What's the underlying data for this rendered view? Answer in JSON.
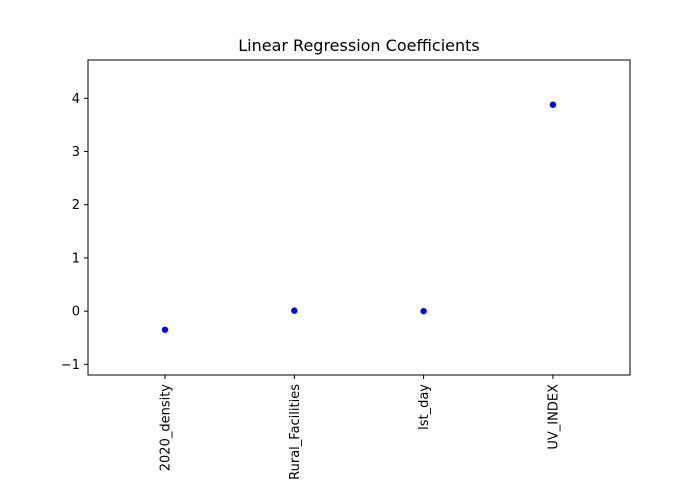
{
  "chart_data": {
    "type": "scatter",
    "title": "Linear Regression Coefficients",
    "xlabel": "",
    "ylabel": "",
    "categories": [
      "2020_density",
      "Rural_Facilities",
      "lst_day",
      "UV_INDEX"
    ],
    "values": [
      -0.35,
      0.01,
      0.0,
      3.88
    ],
    "ylim": [
      -1.2,
      4.72
    ],
    "yticks": [
      -1,
      0,
      1,
      2,
      3,
      4
    ],
    "marker_color": "#0000ff",
    "grid": false,
    "xtick_rotation": "vertical"
  }
}
